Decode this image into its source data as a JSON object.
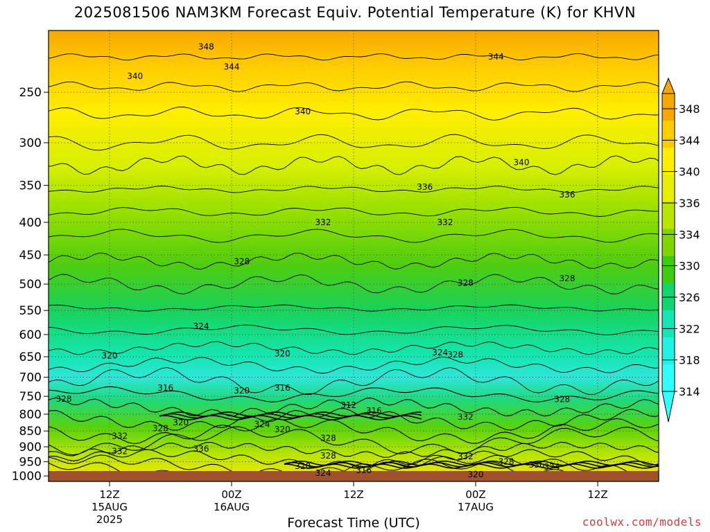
{
  "title": "2025081506 NAM3KM Forecast Equiv. Potential Temperature (K) for KHVN",
  "credit": "coolwx.com/models",
  "chart_data": {
    "type": "heatmap",
    "title": "2025081506 NAM3KM Forecast Equiv. Potential Temperature (K) for KHVN",
    "xlabel": "Forecast Time (UTC)",
    "ylabel": "",
    "y_ticks": [
      "250",
      "300",
      "350",
      "400",
      "450",
      "500",
      "550",
      "600",
      "650",
      "700",
      "750",
      "800",
      "850",
      "900",
      "950",
      "1000"
    ],
    "y_range": [
      200,
      1020
    ],
    "x_ticks": [
      {
        "label": "12Z",
        "sub": "15AUG",
        "sub2": "2025"
      },
      {
        "label": "00Z",
        "sub": "16AUG",
        "sub2": ""
      },
      {
        "label": "12Z",
        "sub": "",
        "sub2": ""
      },
      {
        "label": "00Z",
        "sub": "17AUG",
        "sub2": ""
      },
      {
        "label": "12Z",
        "sub": "",
        "sub2": ""
      }
    ],
    "x_range_hours": [
      6,
      66
    ],
    "colorbar": {
      "labels": [
        "348",
        "344",
        "340",
        "336",
        "334",
        "330",
        "326",
        "322",
        "318",
        "314"
      ],
      "colors": [
        "#f7a800",
        "#ffcc00",
        "#ffee00",
        "#e6f000",
        "#b8e600",
        "#7dd600",
        "#3ccc10",
        "#10d66e",
        "#14e6b4",
        "#1ef2e0",
        "#30ffff"
      ]
    },
    "contour_labels": [
      {
        "text": "348",
        "t": 21.5,
        "p": 212
      },
      {
        "text": "340",
        "t": 14.5,
        "p": 236
      },
      {
        "text": "344",
        "t": 24,
        "p": 228
      },
      {
        "text": "344",
        "t": 50,
        "p": 220
      },
      {
        "text": "340",
        "t": 31,
        "p": 268
      },
      {
        "text": "340",
        "t": 52.5,
        "p": 322
      },
      {
        "text": "336",
        "t": 43,
        "p": 352
      },
      {
        "text": "336",
        "t": 57,
        "p": 362
      },
      {
        "text": "332",
        "t": 33,
        "p": 400
      },
      {
        "text": "332",
        "t": 45,
        "p": 400
      },
      {
        "text": "328",
        "t": 25,
        "p": 461
      },
      {
        "text": "328",
        "t": 47,
        "p": 498
      },
      {
        "text": "328",
        "t": 57,
        "p": 490
      },
      {
        "text": "324",
        "t": 21,
        "p": 582
      },
      {
        "text": "324",
        "t": 44.5,
        "p": 640
      },
      {
        "text": "328",
        "t": 46,
        "p": 645
      },
      {
        "text": "320",
        "t": 12,
        "p": 648
      },
      {
        "text": "320",
        "t": 29,
        "p": 643
      },
      {
        "text": "316",
        "t": 17.5,
        "p": 728
      },
      {
        "text": "316",
        "t": 29,
        "p": 728
      },
      {
        "text": "320",
        "t": 25,
        "p": 735
      },
      {
        "text": "312",
        "t": 35.5,
        "p": 775
      },
      {
        "text": "316",
        "t": 38,
        "p": 790
      },
      {
        "text": "332",
        "t": 47,
        "p": 808
      },
      {
        "text": "328",
        "t": 56.5,
        "p": 758
      },
      {
        "text": "328",
        "t": 7.5,
        "p": 757
      },
      {
        "text": "320",
        "t": 19,
        "p": 825
      },
      {
        "text": "328",
        "t": 17,
        "p": 842
      },
      {
        "text": "324",
        "t": 27,
        "p": 830
      },
      {
        "text": "320",
        "t": 29,
        "p": 845
      },
      {
        "text": "332",
        "t": 13,
        "p": 866
      },
      {
        "text": "332",
        "t": 13,
        "p": 915
      },
      {
        "text": "336",
        "t": 21,
        "p": 907
      },
      {
        "text": "328",
        "t": 33.5,
        "p": 872
      },
      {
        "text": "328",
        "t": 33.5,
        "p": 930
      },
      {
        "text": "332",
        "t": 47,
        "p": 932
      },
      {
        "text": "328",
        "t": 51,
        "p": 950
      },
      {
        "text": "336",
        "t": 54,
        "p": 960
      },
      {
        "text": "324",
        "t": 55.5,
        "p": 968
      },
      {
        "text": "320",
        "t": 31,
        "p": 965
      },
      {
        "text": "324",
        "t": 33,
        "p": 990
      },
      {
        "text": "316",
        "t": 37,
        "p": 980
      },
      {
        "text": "320",
        "t": 48,
        "p": 995
      }
    ]
  }
}
